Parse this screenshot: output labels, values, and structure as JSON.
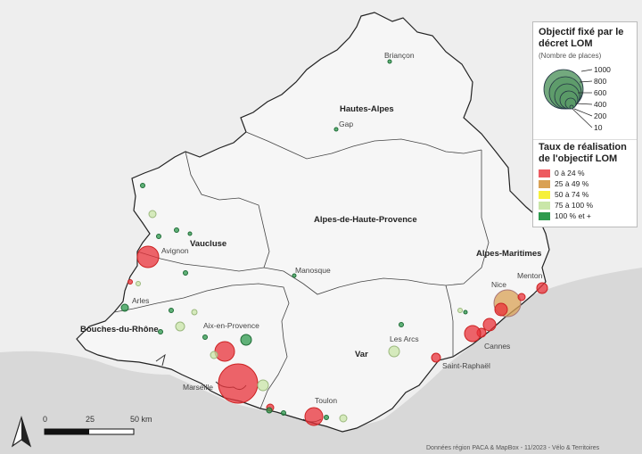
{
  "legend": {
    "size_title": "Objectif fixé par le décret LOM",
    "size_subtitle": "(Nombre de places)",
    "size_values": [
      "1000",
      "800",
      "600",
      "400",
      "200",
      "10"
    ],
    "rate_title": "Taux de réalisation de l'objectif LOM",
    "classes": [
      {
        "label": "0 à 24 %",
        "color": "#e8323a"
      },
      {
        "label": "25 à 49 %",
        "color": "#d9a155"
      },
      {
        "label": "50 à 74 %",
        "color": "#f6f03a"
      },
      {
        "label": "75 à 100 %",
        "color": "#c9e6a8"
      },
      {
        "label": "100 % et +",
        "color": "#2e9a4e"
      }
    ]
  },
  "departments": [
    "Hautes-Alpes",
    "Alpes-de-Haute-Provence",
    "Vaucluse",
    "Alpes-Maritimes",
    "Bouches-du-Rhône",
    "Var"
  ],
  "cities": [
    "Briançon",
    "Gap",
    "Avignon",
    "Manosque",
    "Arles",
    "Aix-en-Provence",
    "Marseille",
    "Toulon",
    "Les Arcs",
    "Saint-Raphaël",
    "Cannes",
    "Nice",
    "Menton"
  ],
  "scalebar": {
    "labels": [
      "0",
      "25",
      "50 km"
    ]
  },
  "north_arrow": "north-arrow",
  "credit": "Données région PACA & MapBox - 11/2023 - Vélo & Territoires"
}
